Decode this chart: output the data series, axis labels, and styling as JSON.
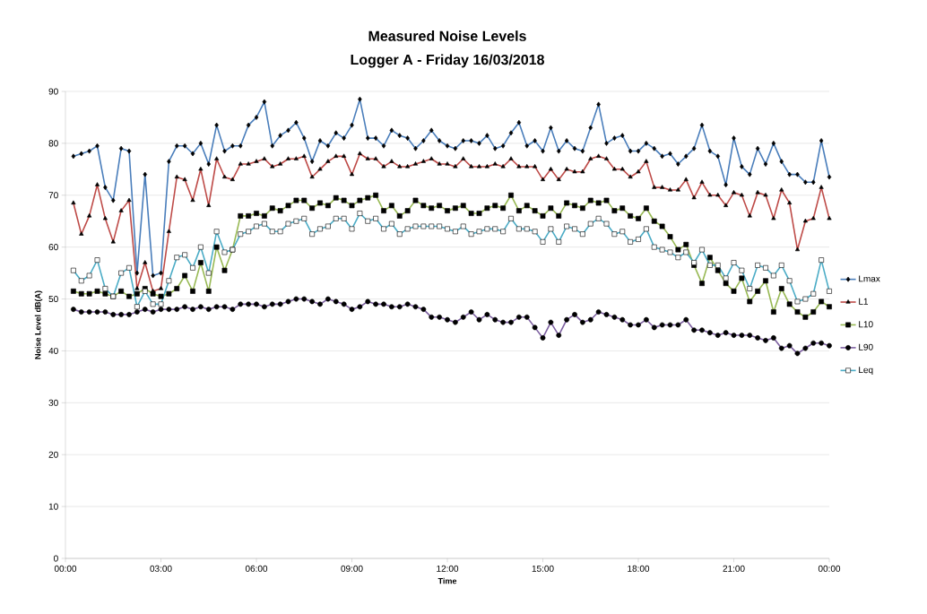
{
  "chart_data": {
    "type": "line",
    "title": "Measured Noise Levels",
    "subtitle": "Logger A - Friday 16/03/2018",
    "xlabel": "Time",
    "ylabel": "Noise Level dB(A)",
    "x": [
      0.25,
      0.5,
      0.75,
      1,
      1.25,
      1.5,
      1.75,
      2,
      2.25,
      2.5,
      2.75,
      3,
      3.25,
      3.5,
      3.75,
      4,
      4.25,
      4.5,
      4.75,
      5,
      5.25,
      5.5,
      5.75,
      6,
      6.25,
      6.5,
      6.75,
      7,
      7.25,
      7.5,
      7.75,
      8,
      8.25,
      8.5,
      8.75,
      9,
      9.25,
      9.5,
      9.75,
      10,
      10.25,
      10.5,
      10.75,
      11,
      11.25,
      11.5,
      11.75,
      12,
      12.25,
      12.5,
      12.75,
      13,
      13.25,
      13.5,
      13.75,
      14,
      14.25,
      14.5,
      14.75,
      15,
      15.25,
      15.5,
      15.75,
      16,
      16.25,
      16.5,
      16.75,
      17,
      17.25,
      17.5,
      17.75,
      18,
      18.25,
      18.5,
      18.75,
      19,
      19.25,
      19.5,
      19.75,
      20,
      20.25,
      20.5,
      20.75,
      21,
      21.25,
      21.5,
      21.75,
      22,
      22.25,
      22.5,
      22.75,
      23,
      23.25,
      23.5,
      23.75,
      24
    ],
    "series": [
      {
        "name": "Lmax",
        "color": "#4a7ebb",
        "marker": "diamond",
        "values": [
          77.5,
          78,
          78.5,
          79.5,
          71.5,
          69,
          79,
          78.5,
          55,
          74,
          54.5,
          55,
          76.5,
          79.5,
          79.5,
          78,
          80,
          76,
          83.5,
          78.5,
          79.5,
          79.5,
          83.5,
          85,
          88,
          79.5,
          81.5,
          82.5,
          84,
          81,
          76.5,
          80.5,
          79.5,
          82,
          81,
          83.5,
          88.5,
          81,
          81,
          79.5,
          82.5,
          81.5,
          81,
          79,
          80.5,
          82.5,
          80.5,
          79.5,
          79,
          80.5,
          80.5,
          80,
          81.5,
          79,
          79.5,
          82,
          84,
          79.5,
          80.5,
          78.5,
          83,
          78.5,
          80.5,
          79,
          78.5,
          83,
          87.5,
          80,
          81,
          81.5,
          78.5,
          78.5,
          80,
          79,
          77.5,
          78,
          76,
          77.5,
          79,
          83.5,
          78.5,
          77.5,
          72,
          81,
          75.5,
          74,
          79,
          76,
          80,
          76.5,
          74,
          74,
          72.5,
          72.5,
          80.5,
          73.5
        ]
      },
      {
        "name": "L1",
        "color": "#be4b48",
        "marker": "triangle",
        "values": [
          68.5,
          62.5,
          66,
          72,
          65.5,
          61,
          67,
          69,
          52,
          57,
          51.5,
          52,
          63,
          73.5,
          73,
          69,
          75,
          68,
          77,
          73.5,
          73,
          76,
          76,
          76.5,
          77,
          75.5,
          76,
          77,
          77,
          77.5,
          73.5,
          75,
          76.5,
          77.5,
          77.5,
          74,
          78,
          77,
          77,
          75.5,
          76.5,
          75.5,
          75.5,
          76,
          76.5,
          77,
          76,
          76,
          75.5,
          77,
          75.5,
          75.5,
          75.5,
          76,
          75.5,
          77,
          75.5,
          75.5,
          75.5,
          73,
          75,
          73,
          75,
          74.5,
          74.5,
          77,
          77.5,
          77,
          75,
          75,
          73.5,
          74.5,
          76.5,
          71.5,
          71.5,
          71,
          71,
          73,
          69.5,
          72.5,
          70,
          70,
          68,
          70.5,
          70,
          66,
          70.5,
          70,
          65.5,
          71,
          68.5,
          59.5,
          65,
          65.5,
          71.5,
          65.5
        ]
      },
      {
        "name": "L10",
        "color": "#98b954",
        "marker": "square",
        "values": [
          51.5,
          51,
          51,
          51.5,
          51,
          50.5,
          51.5,
          50.5,
          51,
          52,
          51,
          50.5,
          51,
          52,
          54.5,
          51.5,
          57,
          51.5,
          60,
          55.5,
          59.5,
          66,
          66,
          66.5,
          66,
          67.5,
          67,
          68,
          69,
          69,
          67.5,
          68.5,
          68,
          69.5,
          69,
          68,
          69,
          69.5,
          70,
          67,
          68,
          66,
          67,
          69,
          68,
          67.5,
          68,
          67,
          67.5,
          68,
          66.5,
          66.5,
          67.5,
          68,
          67.5,
          70,
          67,
          68,
          67,
          66,
          67.5,
          66,
          68.5,
          68,
          67.5,
          69,
          68.5,
          69,
          67,
          67.5,
          66,
          65.5,
          67.5,
          65,
          64,
          62,
          59.5,
          60.5,
          56.5,
          53,
          58,
          55.5,
          53,
          51.5,
          54,
          49.5,
          51.5,
          53.5,
          47.5,
          52,
          49,
          47.5,
          46.5,
          47.5,
          49.5,
          48.5
        ]
      },
      {
        "name": "L90",
        "color": "#7d60a0",
        "marker": "circle",
        "values": [
          48,
          47.5,
          47.5,
          47.5,
          47.5,
          47,
          47,
          47,
          47.5,
          48,
          47.5,
          48,
          48,
          48,
          48.5,
          48,
          48.5,
          48,
          48.5,
          48.5,
          48,
          49,
          49,
          49,
          48.5,
          49,
          49,
          49.5,
          50,
          50,
          49.5,
          49,
          50,
          49.5,
          49,
          48,
          48.5,
          49.5,
          49,
          49,
          48.5,
          48.5,
          49,
          48.5,
          48,
          46.5,
          46.5,
          46,
          45.5,
          46.5,
          47.5,
          46,
          47,
          46,
          45.5,
          45.5,
          46.5,
          46.5,
          44.5,
          42.5,
          45.5,
          43,
          46,
          47,
          45.5,
          46,
          47.5,
          47,
          46.5,
          46,
          45,
          45,
          46,
          44.5,
          45,
          45,
          45,
          46,
          44,
          44,
          43.5,
          43,
          43.5,
          43,
          43,
          43,
          42.5,
          42,
          42.5,
          40.5,
          41,
          39.5,
          40.5,
          41.5,
          41.5,
          41
        ]
      },
      {
        "name": "Leq",
        "color": "#4bacc6",
        "marker": "square",
        "values": [
          55.5,
          53.5,
          54.5,
          57.5,
          52,
          50.5,
          55,
          56,
          48.5,
          51.5,
          49,
          49,
          53.5,
          58,
          58.5,
          56,
          60,
          55,
          63,
          59,
          59.5,
          62.5,
          63,
          64,
          64.5,
          63,
          63,
          64.5,
          65,
          65.5,
          62.5,
          63.5,
          64,
          65.5,
          65.5,
          63.5,
          66.5,
          65,
          65.5,
          63.5,
          64.5,
          62.5,
          63.5,
          64,
          64,
          64,
          64,
          63.5,
          63,
          64,
          62.5,
          63,
          63.5,
          63.5,
          63,
          65.5,
          63.5,
          63.5,
          63,
          61,
          63.5,
          61,
          64,
          63.5,
          62.5,
          64.5,
          65.5,
          64.5,
          62.5,
          63,
          61,
          61.5,
          63.5,
          60,
          59.5,
          59,
          58,
          59,
          57,
          59.5,
          56.5,
          56.5,
          54,
          57,
          55.5,
          52,
          56.5,
          56,
          54.5,
          56.5,
          53.5,
          49.5,
          50,
          51,
          57.5,
          51.5
        ]
      }
    ],
    "xlim": [
      0,
      24
    ],
    "xticks": [
      {
        "value": 0,
        "label": "00:00"
      },
      {
        "value": 3,
        "label": "03:00"
      },
      {
        "value": 6,
        "label": "06:00"
      },
      {
        "value": 9,
        "label": "09:00"
      },
      {
        "value": 12,
        "label": "12:00"
      },
      {
        "value": 15,
        "label": "15:00"
      },
      {
        "value": 18,
        "label": "18:00"
      },
      {
        "value": 21,
        "label": "21:00"
      },
      {
        "value": 24,
        "label": "00:00"
      }
    ],
    "ylim": [
      0,
      90
    ],
    "yticks": [
      0,
      10,
      20,
      30,
      40,
      50,
      60,
      70,
      80,
      90
    ],
    "grid": "y",
    "legend": "right",
    "line_style": "solid"
  }
}
